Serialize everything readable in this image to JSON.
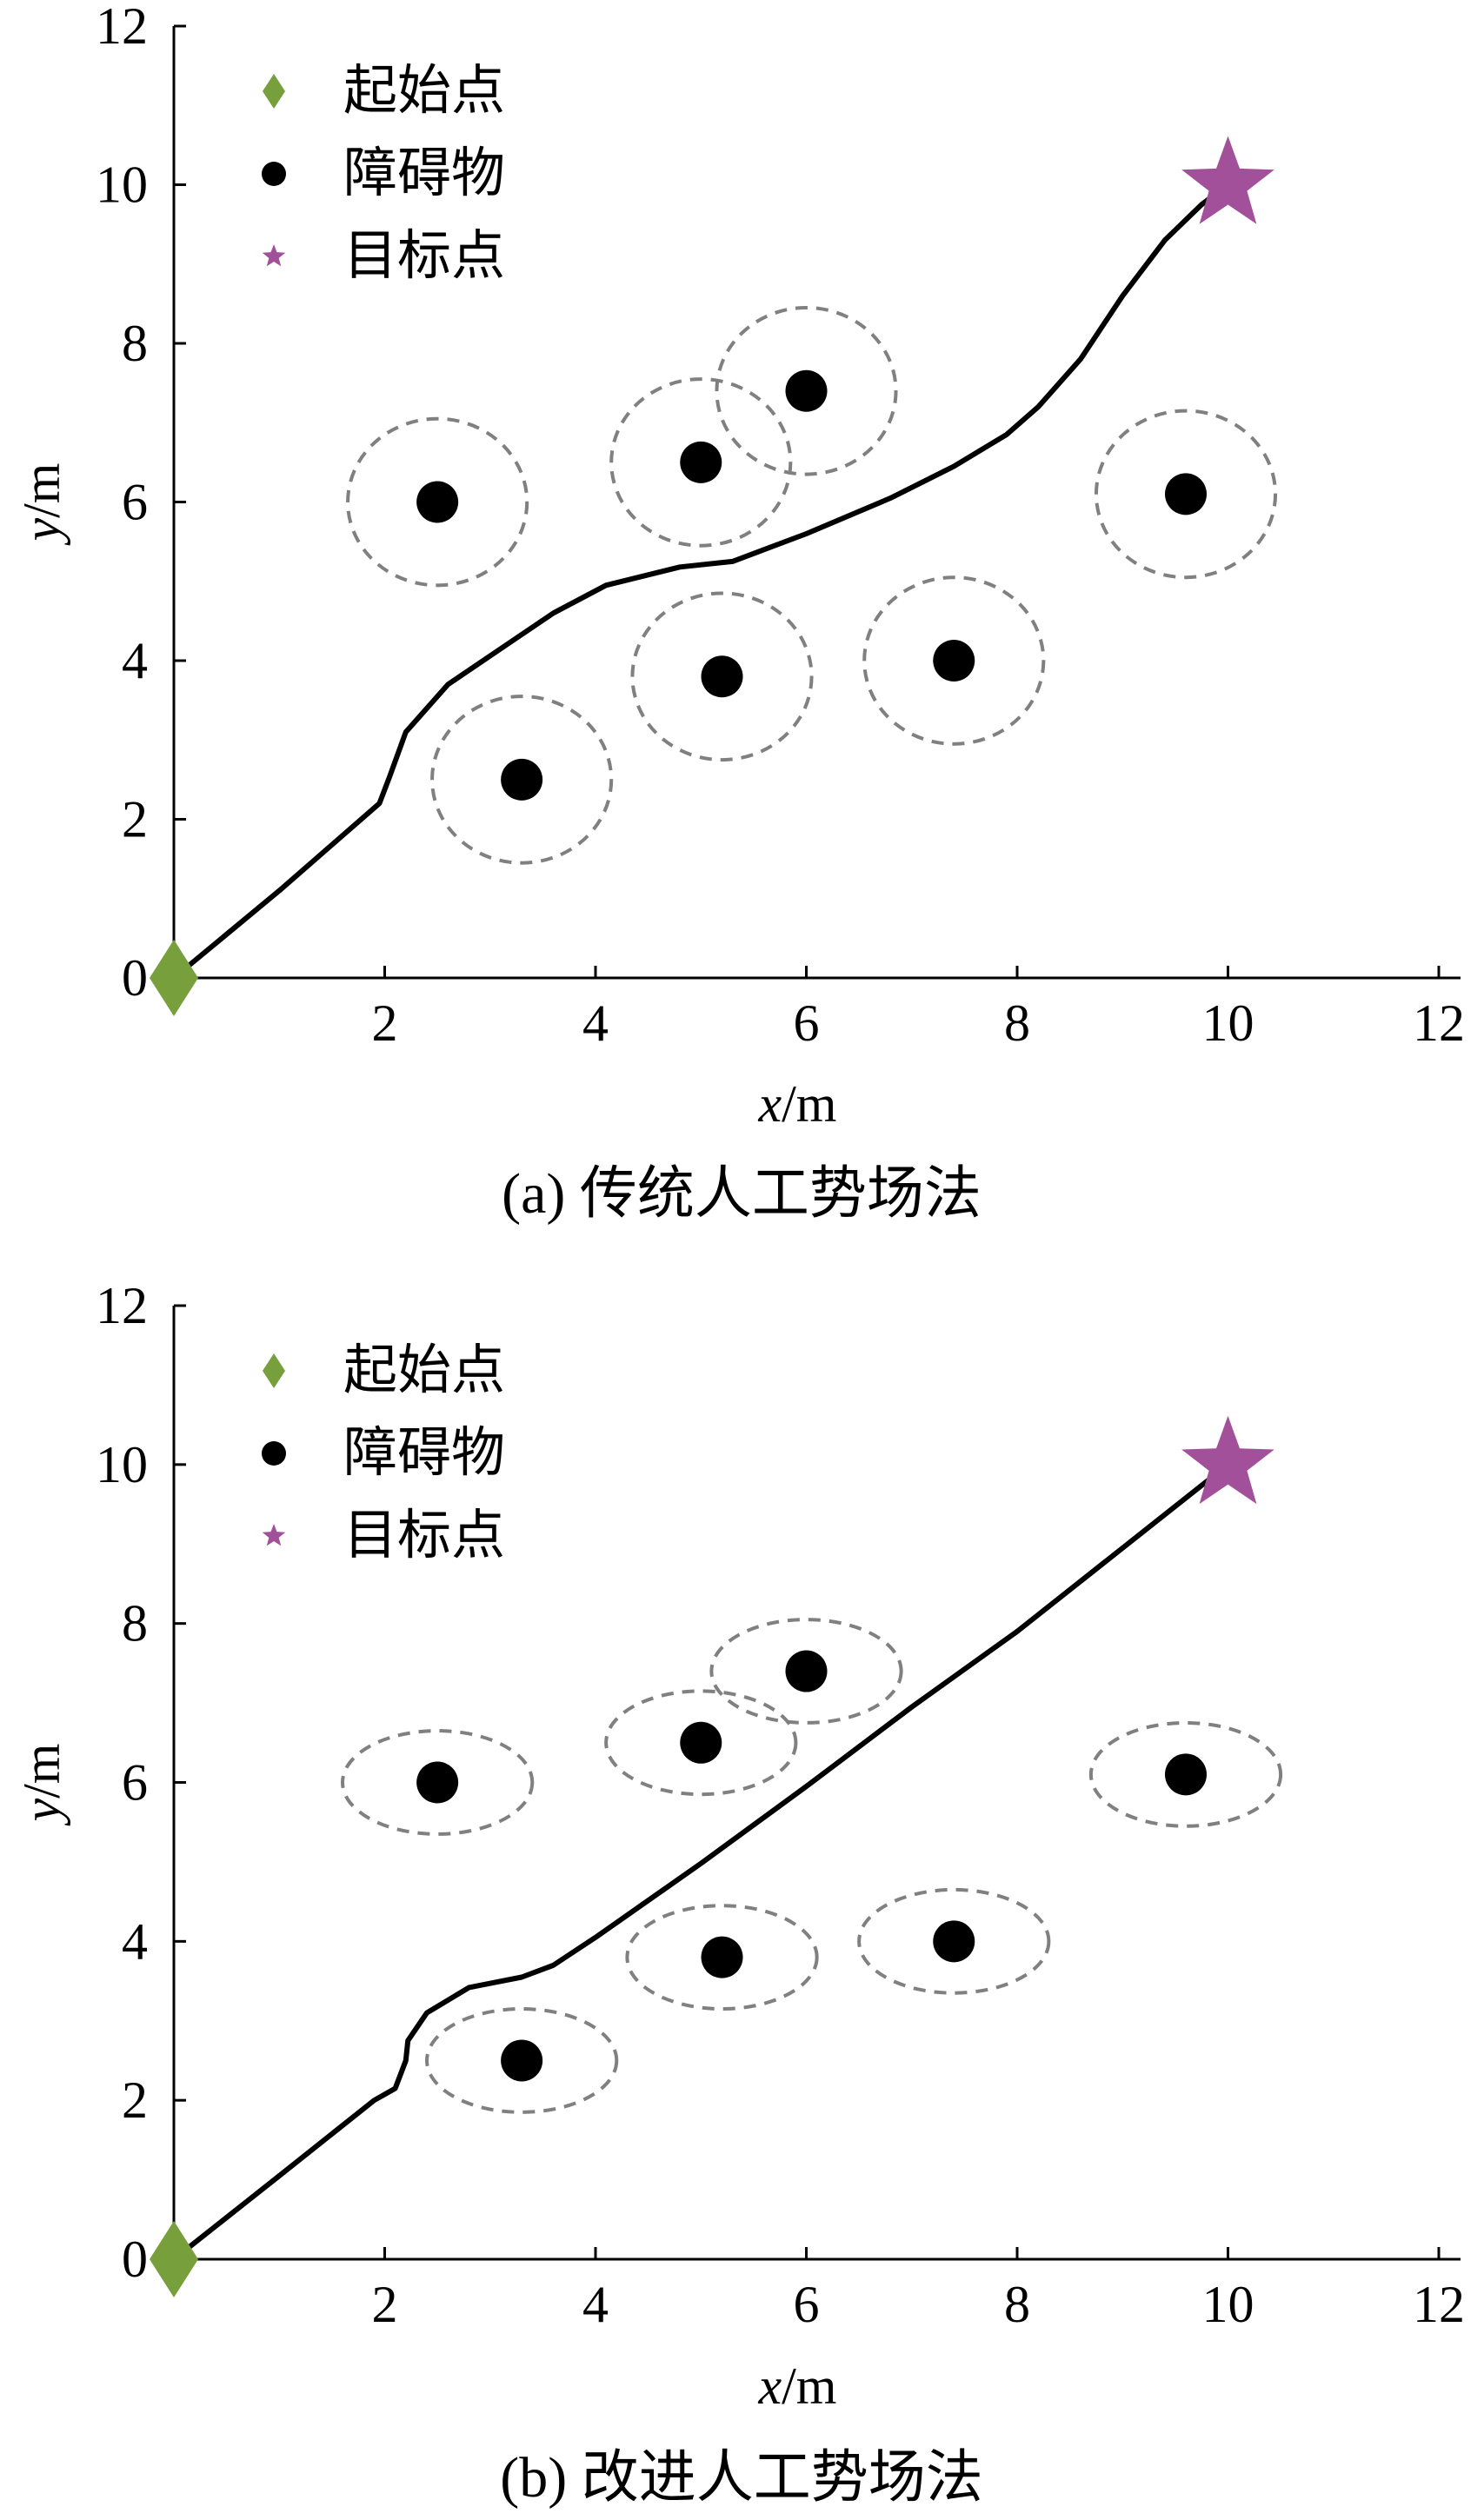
{
  "chart_data": [
    {
      "type": "scatter",
      "caption": "(a) 传统人工势场法",
      "xlabel": "x/m",
      "ylabel": "y/m",
      "xlim": [
        0,
        12
      ],
      "ylim": [
        0,
        12
      ],
      "xticks": [
        2,
        4,
        6,
        8,
        10,
        12
      ],
      "yticks": [
        0,
        2,
        4,
        6,
        8,
        10,
        12
      ],
      "legend": {
        "placement": "top-left",
        "entries": [
          {
            "label": "起始点",
            "marker": "diamond",
            "color": "#77a03d"
          },
          {
            "label": "障碍物",
            "marker": "circle",
            "color": "#000000"
          },
          {
            "label": "目标点",
            "marker": "star",
            "color": "#a3509a"
          }
        ]
      },
      "start": {
        "x": 0,
        "y": 0
      },
      "goal": {
        "x": 10,
        "y": 10
      },
      "influence_shape": "circle",
      "influence_rx": 0.85,
      "influence_ry": 1.05,
      "obstacles": [
        {
          "x": 2.5,
          "y": 6.0
        },
        {
          "x": 3.3,
          "y": 2.5
        },
        {
          "x": 5.0,
          "y": 6.5
        },
        {
          "x": 6.0,
          "y": 7.4
        },
        {
          "x": 5.2,
          "y": 3.8
        },
        {
          "x": 7.4,
          "y": 4.0
        },
        {
          "x": 9.6,
          "y": 6.1
        }
      ],
      "path": [
        [
          0,
          0
        ],
        [
          1.0,
          1.1
        ],
        [
          1.95,
          2.2
        ],
        [
          2.05,
          2.55
        ],
        [
          2.2,
          3.1
        ],
        [
          2.6,
          3.7
        ],
        [
          3.1,
          4.15
        ],
        [
          3.6,
          4.6
        ],
        [
          4.1,
          4.95
        ],
        [
          4.8,
          5.18
        ],
        [
          5.3,
          5.25
        ],
        [
          6.0,
          5.6
        ],
        [
          6.8,
          6.05
        ],
        [
          7.4,
          6.45
        ],
        [
          7.9,
          6.85
        ],
        [
          8.2,
          7.2
        ],
        [
          8.6,
          7.8
        ],
        [
          9.0,
          8.6
        ],
        [
          9.4,
          9.3
        ],
        [
          9.75,
          9.75
        ],
        [
          10,
          10
        ]
      ]
    },
    {
      "type": "scatter",
      "caption": "(b) 改进人工势场法",
      "xlabel": "x/m",
      "ylabel": "y/m",
      "xlim": [
        0,
        12
      ],
      "ylim": [
        0,
        12
      ],
      "xticks": [
        2,
        4,
        6,
        8,
        10,
        12
      ],
      "yticks": [
        0,
        2,
        4,
        6,
        8,
        10,
        12
      ],
      "legend": {
        "placement": "top-left",
        "entries": [
          {
            "label": "起始点",
            "marker": "diamond",
            "color": "#77a03d"
          },
          {
            "label": "障碍物",
            "marker": "circle",
            "color": "#000000"
          },
          {
            "label": "目标点",
            "marker": "star",
            "color": "#a3509a"
          }
        ]
      },
      "start": {
        "x": 0,
        "y": 0
      },
      "goal": {
        "x": 10,
        "y": 10
      },
      "influence_shape": "ellipse",
      "influence_rx": 0.9,
      "influence_ry": 0.65,
      "obstacles": [
        {
          "x": 2.5,
          "y": 6.0
        },
        {
          "x": 3.3,
          "y": 2.5
        },
        {
          "x": 5.0,
          "y": 6.5
        },
        {
          "x": 6.0,
          "y": 7.4
        },
        {
          "x": 5.2,
          "y": 3.8
        },
        {
          "x": 7.4,
          "y": 4.0
        },
        {
          "x": 9.6,
          "y": 6.1
        }
      ],
      "path": [
        [
          0,
          0
        ],
        [
          1.0,
          1.05
        ],
        [
          1.9,
          2.0
        ],
        [
          2.1,
          2.15
        ],
        [
          2.2,
          2.5
        ],
        [
          2.22,
          2.75
        ],
        [
          2.4,
          3.1
        ],
        [
          2.8,
          3.42
        ],
        [
          3.3,
          3.55
        ],
        [
          3.6,
          3.7
        ],
        [
          4.0,
          4.05
        ],
        [
          5.0,
          4.98
        ],
        [
          6.0,
          5.95
        ],
        [
          7.0,
          6.95
        ],
        [
          8.0,
          7.9
        ],
        [
          9.0,
          8.95
        ],
        [
          10,
          10
        ]
      ]
    }
  ]
}
